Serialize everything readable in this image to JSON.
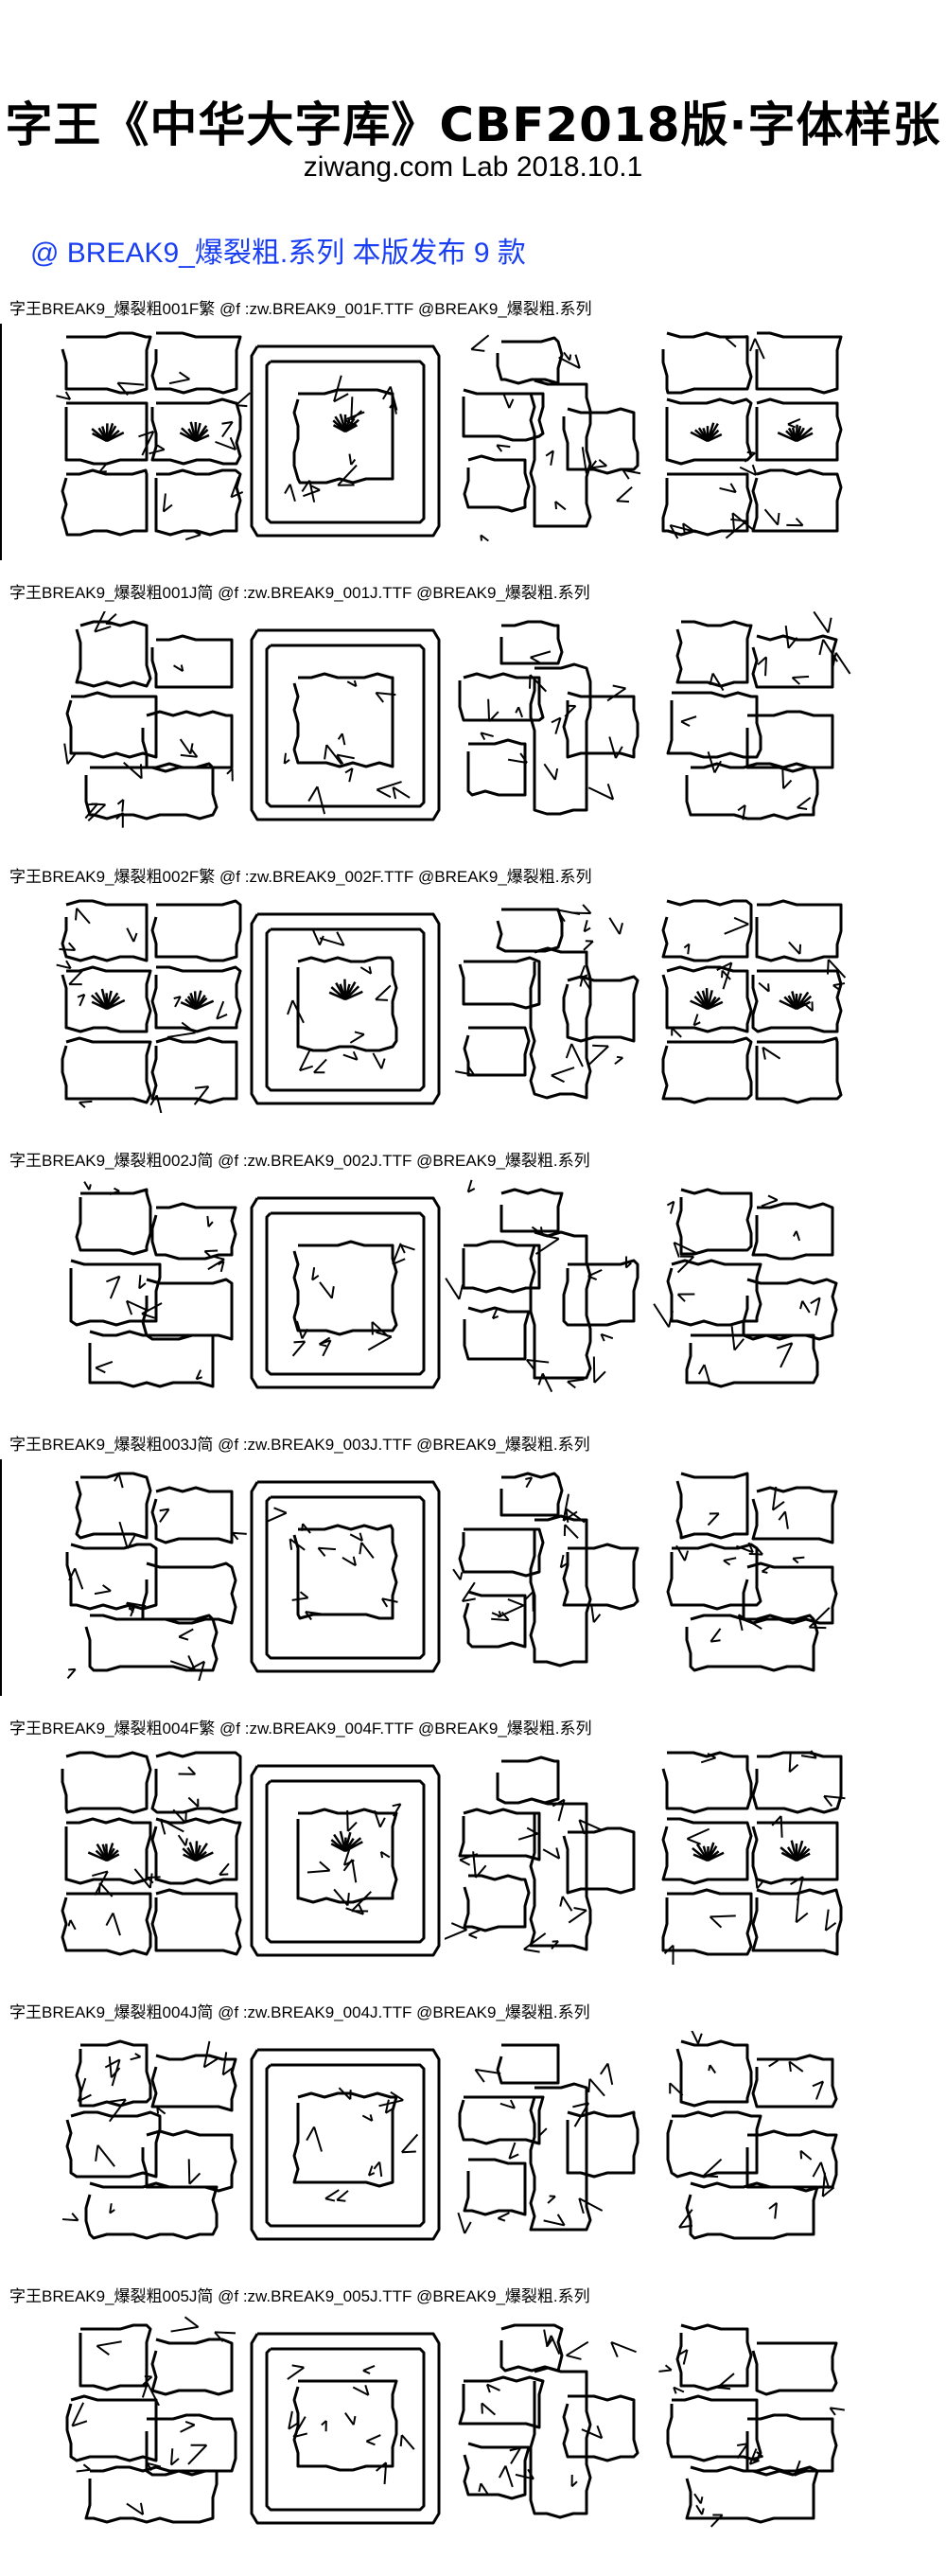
{
  "header": {
    "title": "字王《中华大字库》CBF2018版·字体样张",
    "subtitle": "ziwang.com Lab 2018.10.1",
    "series_line": "@ BREAK9_爆裂粗.系列 本版发布 9 款"
  },
  "samples": [
    {
      "caption": "字王BREAK9_爆裂粗001F繁 @f :zw.BREAK9_001F.TTF @BREAK9_爆裂粗.系列",
      "chars": [
        "龍",
        "國",
        "永",
        "華"
      ]
    },
    {
      "caption": "字王BREAK9_爆裂粗001J简 @f :zw.BREAK9_001J.TTF @BREAK9_爆裂粗.系列",
      "chars": [
        "龙",
        "国",
        "永",
        "华"
      ]
    },
    {
      "caption": "字王BREAK9_爆裂粗002F繁 @f :zw.BREAK9_002F.TTF @BREAK9_爆裂粗.系列",
      "chars": [
        "龍",
        "國",
        "永",
        "華"
      ]
    },
    {
      "caption": "字王BREAK9_爆裂粗002J简 @f :zw.BREAK9_002J.TTF @BREAK9_爆裂粗.系列",
      "chars": [
        "龙",
        "国",
        "永",
        "华"
      ]
    },
    {
      "caption": "字王BREAK9_爆裂粗003J简 @f :zw.BREAK9_003J.TTF @BREAK9_爆裂粗.系列",
      "chars": [
        "龙",
        "国",
        "永",
        "华"
      ]
    },
    {
      "caption": "字王BREAK9_爆裂粗004F繁 @f :zw.BREAK9_004F.TTF @BREAK9_爆裂粗.系列",
      "chars": [
        "龍",
        "國",
        "永",
        "華"
      ]
    },
    {
      "caption": "字王BREAK9_爆裂粗004J简 @f :zw.BREAK9_004J.TTF @BREAK9_爆裂粗.系列",
      "chars": [
        "龙",
        "国",
        "永",
        "华"
      ]
    },
    {
      "caption": "字王BREAK9_爆裂粗005J简 @f :zw.BREAK9_005J.TTF @BREAK9_爆裂粗.系列",
      "chars": [
        "龙",
        "国",
        "永",
        "华"
      ]
    }
  ]
}
